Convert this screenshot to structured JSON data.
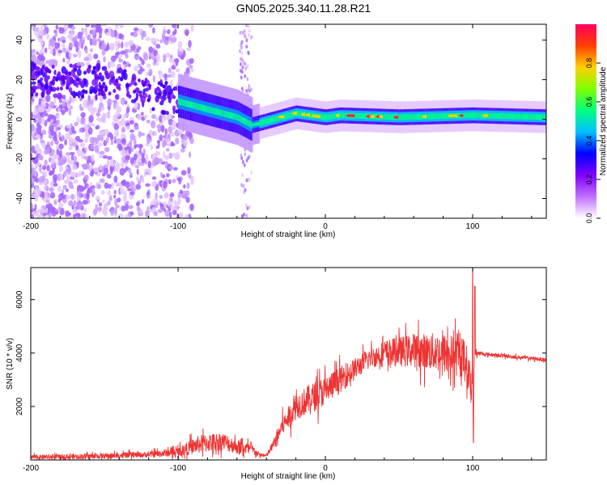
{
  "title": "GN05.2025.340.11.28.R21",
  "chart_data": [
    {
      "type": "heatmap",
      "xlabel": "Height of straight line (km)",
      "ylabel": "Frequency (Hz)",
      "xlim": [
        -200,
        150
      ],
      "ylim": [
        -50,
        48
      ],
      "xticks": [
        -200,
        -100,
        0,
        100
      ],
      "yticks": [
        -40,
        -20,
        0,
        20,
        40
      ],
      "colorbar": {
        "label": "Normalized spectral amplitude",
        "ticks": [
          "0.0",
          "0.2",
          "0.4",
          "0.6",
          "0.8"
        ],
        "range": [
          0,
          1
        ],
        "colors": [
          "#ffffff",
          "#c070ff",
          "#8000ff",
          "#0000ff",
          "#00c0ff",
          "#00ff80",
          "#80ff00",
          "#ffd000",
          "#ff4000",
          "#ff0060"
        ]
      },
      "ridge": {
        "x": [
          -200,
          -160,
          -140,
          -120,
          -105,
          -90,
          -75,
          -60,
          -50,
          -45,
          -40,
          -30,
          -20,
          -10,
          0,
          10,
          50,
          100,
          150
        ],
        "freq": [
          20,
          19,
          18,
          13,
          10,
          7,
          4,
          1,
          -3,
          -2,
          -1,
          1,
          3,
          2,
          1,
          2,
          1,
          2,
          1
        ]
      },
      "grid": false
    },
    {
      "type": "line",
      "xlabel": "Height of straight line (km)",
      "ylabel": "SNR (10 * v/v)",
      "xlim": [
        -200,
        150
      ],
      "ylim": [
        0,
        7200
      ],
      "xticks": [
        -200,
        -100,
        0,
        100
      ],
      "yticks": [
        2000,
        4000,
        6000
      ],
      "series_color": "#ee3333",
      "envelope": {
        "x": [
          -200,
          -150,
          -120,
          -100,
          -85,
          -70,
          -60,
          -50,
          -45,
          -40,
          -35,
          -30,
          -20,
          -10,
          0,
          10,
          20,
          30,
          40,
          60,
          80,
          95,
          100,
          102,
          110,
          130,
          150
        ],
        "mean": [
          100,
          150,
          200,
          300,
          600,
          700,
          500,
          400,
          200,
          150,
          600,
          1200,
          2000,
          2300,
          2600,
          3000,
          3400,
          3800,
          4000,
          4100,
          4000,
          3800,
          2500,
          4000,
          3950,
          3850,
          3750
        ],
        "amp": [
          120,
          150,
          150,
          250,
          500,
          500,
          400,
          300,
          100,
          100,
          300,
          500,
          700,
          800,
          800,
          700,
          600,
          500,
          700,
          900,
          1100,
          1100,
          1000,
          150,
          100,
          100,
          100
        ]
      },
      "peaks": [
        {
          "x": 100,
          "y": 7200
        },
        {
          "x": 101.5,
          "y": 6500
        },
        {
          "x": 100.5,
          "y": 650
        }
      ],
      "grid": false
    }
  ]
}
